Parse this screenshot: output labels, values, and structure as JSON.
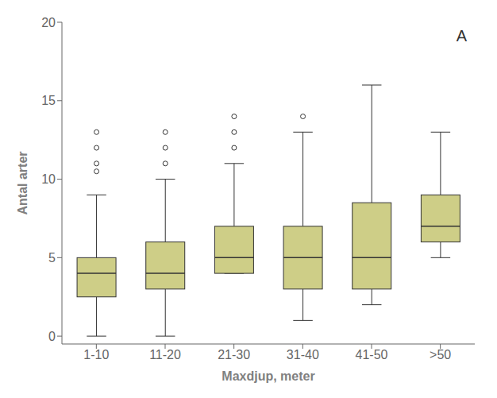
{
  "chart_data": {
    "type": "box",
    "categories": [
      "1-10",
      "11-20",
      "21-30",
      "31-40",
      "41-50",
      ">50"
    ],
    "boxes": [
      {
        "q1": 2.5,
        "median": 4.0,
        "q3": 5.0,
        "whislo": 0.0,
        "whishi": 9.0,
        "fliers": [
          10.5,
          11.0,
          12.0,
          13.0
        ]
      },
      {
        "q1": 3.0,
        "median": 4.0,
        "q3": 6.0,
        "whislo": 0.0,
        "whishi": 10.0,
        "fliers": [
          11.0,
          12.0,
          13.0
        ]
      },
      {
        "q1": 4.0,
        "median": 5.0,
        "q3": 7.0,
        "whislo": 4.0,
        "whishi": 11.0,
        "fliers": [
          12.0,
          13.0,
          14.0
        ]
      },
      {
        "q1": 3.0,
        "median": 5.0,
        "q3": 7.0,
        "whislo": 1.0,
        "whishi": 13.0,
        "fliers": [
          14.0
        ]
      },
      {
        "q1": 3.0,
        "median": 5.0,
        "q3": 8.5,
        "whislo": 2.0,
        "whishi": 16.0,
        "fliers": []
      },
      {
        "q1": 6.0,
        "median": 7.0,
        "q3": 9.0,
        "whislo": 5.0,
        "whishi": 13.0,
        "fliers": []
      }
    ],
    "xlabel": "Maxdjup, meter",
    "ylabel": "Antal arter",
    "annotation": "A",
    "ylim": [
      -0.5,
      20
    ],
    "yticks": [
      0,
      5,
      10,
      15,
      20
    ],
    "color": "#cece87",
    "grid": false
  }
}
